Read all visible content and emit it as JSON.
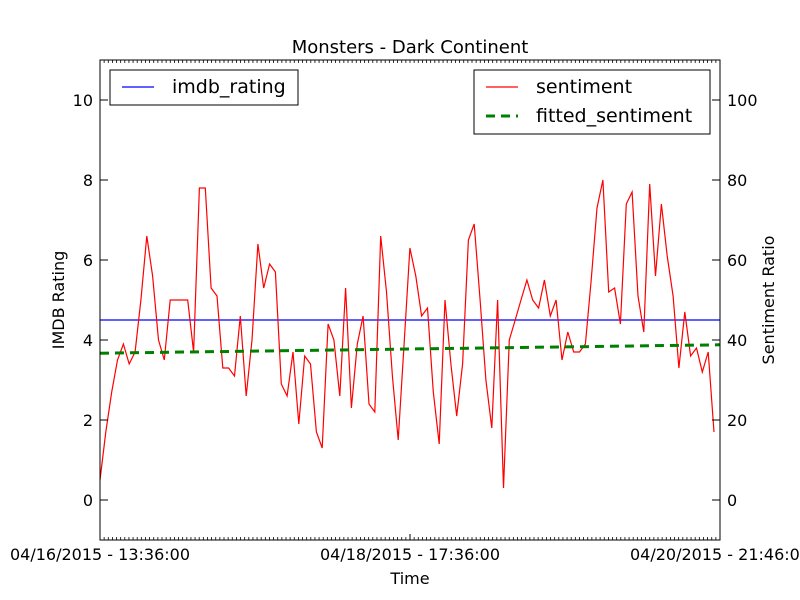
{
  "chart_data": {
    "type": "line",
    "title": "Monsters - Dark Continent",
    "xlabel": "Time",
    "ylabel_left": "IMDB Rating",
    "ylabel_right": "Sentiment Ratio",
    "x_tick_labels": [
      "04/16/2015 - 13:36:00",
      "04/18/2015 - 17:36:00",
      "04/20/2015 - 21:46:00"
    ],
    "ylim_left": [
      -1,
      11
    ],
    "ylim_right": [
      -10,
      110
    ],
    "yticks_left": [
      0,
      2,
      4,
      6,
      8,
      10
    ],
    "yticks_right": [
      0,
      20,
      40,
      60,
      80,
      100
    ],
    "grid": false,
    "legends": [
      {
        "placement": "top-left",
        "entries": [
          "imdb_rating"
        ]
      },
      {
        "placement": "top-right",
        "entries": [
          "sentiment",
          "fitted_sentiment"
        ]
      }
    ],
    "series": [
      {
        "name": "imdb_rating",
        "axis": "left",
        "color": "#0000ff",
        "style": "solid",
        "values": [
          4.5,
          4.5
        ]
      },
      {
        "name": "sentiment",
        "axis": "right",
        "color": "#ff0000",
        "style": "solid",
        "values": [
          5,
          17,
          27,
          35,
          39,
          34,
          37,
          50,
          66,
          56,
          40,
          35,
          50,
          50,
          50,
          50,
          37,
          78,
          78,
          53,
          51,
          33,
          33,
          31,
          46,
          26,
          40,
          64,
          53,
          59,
          57,
          29,
          26,
          37,
          19,
          36,
          34,
          17,
          13,
          44,
          40,
          26,
          53,
          23,
          39,
          46,
          24,
          22,
          66,
          52,
          31,
          15,
          39,
          63,
          56,
          46,
          48,
          27,
          14,
          50,
          34,
          21,
          34,
          65,
          69,
          50,
          30,
          18,
          50,
          3,
          40,
          45,
          50,
          55,
          50,
          48,
          55,
          46,
          50,
          35,
          42,
          37,
          37,
          39,
          55,
          73,
          80,
          52,
          53,
          44,
          74,
          77,
          51,
          42,
          79,
          56,
          74,
          61,
          51,
          33,
          47,
          36,
          38,
          32,
          37,
          17
        ],
        "x_range": [
          0,
          1
        ]
      },
      {
        "name": "fitted_sentiment",
        "axis": "right",
        "color": "#008000",
        "style": "dashed",
        "values": [
          36.7,
          38.8
        ]
      }
    ]
  }
}
